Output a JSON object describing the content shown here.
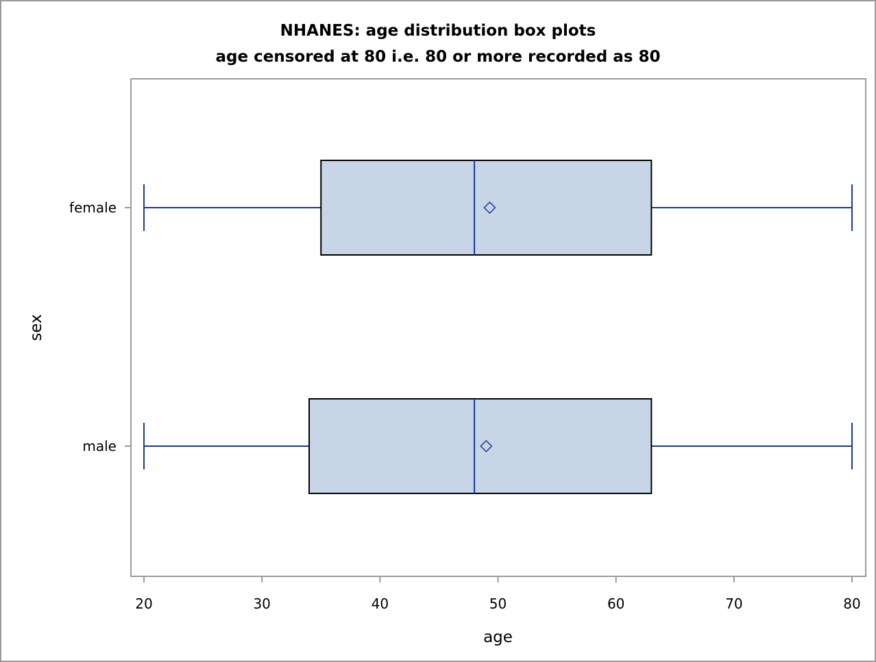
{
  "chart_data": {
    "type": "box",
    "title": "NHANES: age distribution box plots",
    "subtitle": "age censored at 80 i.e. 80 or more recorded as 80",
    "xlabel": "age",
    "ylabel": "sex",
    "xlim": [
      19,
      81
    ],
    "xticks": [
      20,
      30,
      40,
      50,
      60,
      70,
      80
    ],
    "xtick_labels": [
      "20",
      "30",
      "40",
      "50",
      "60",
      "70",
      "80"
    ],
    "grid": false,
    "categories": [
      "female",
      "male"
    ],
    "boxes": [
      {
        "category": "female",
        "min": 20,
        "q1": 35,
        "median": 48,
        "mean": 49.3,
        "q3": 63,
        "max": 80
      },
      {
        "category": "male",
        "min": 20,
        "q1": 34,
        "median": 48,
        "mean": 49,
        "q3": 63,
        "max": 80
      }
    ],
    "colors": {
      "box_fill": "#c8d5e7",
      "box_outline": "#000000",
      "line": "#0f3a9c",
      "axis": "#9a9a9a"
    }
  }
}
